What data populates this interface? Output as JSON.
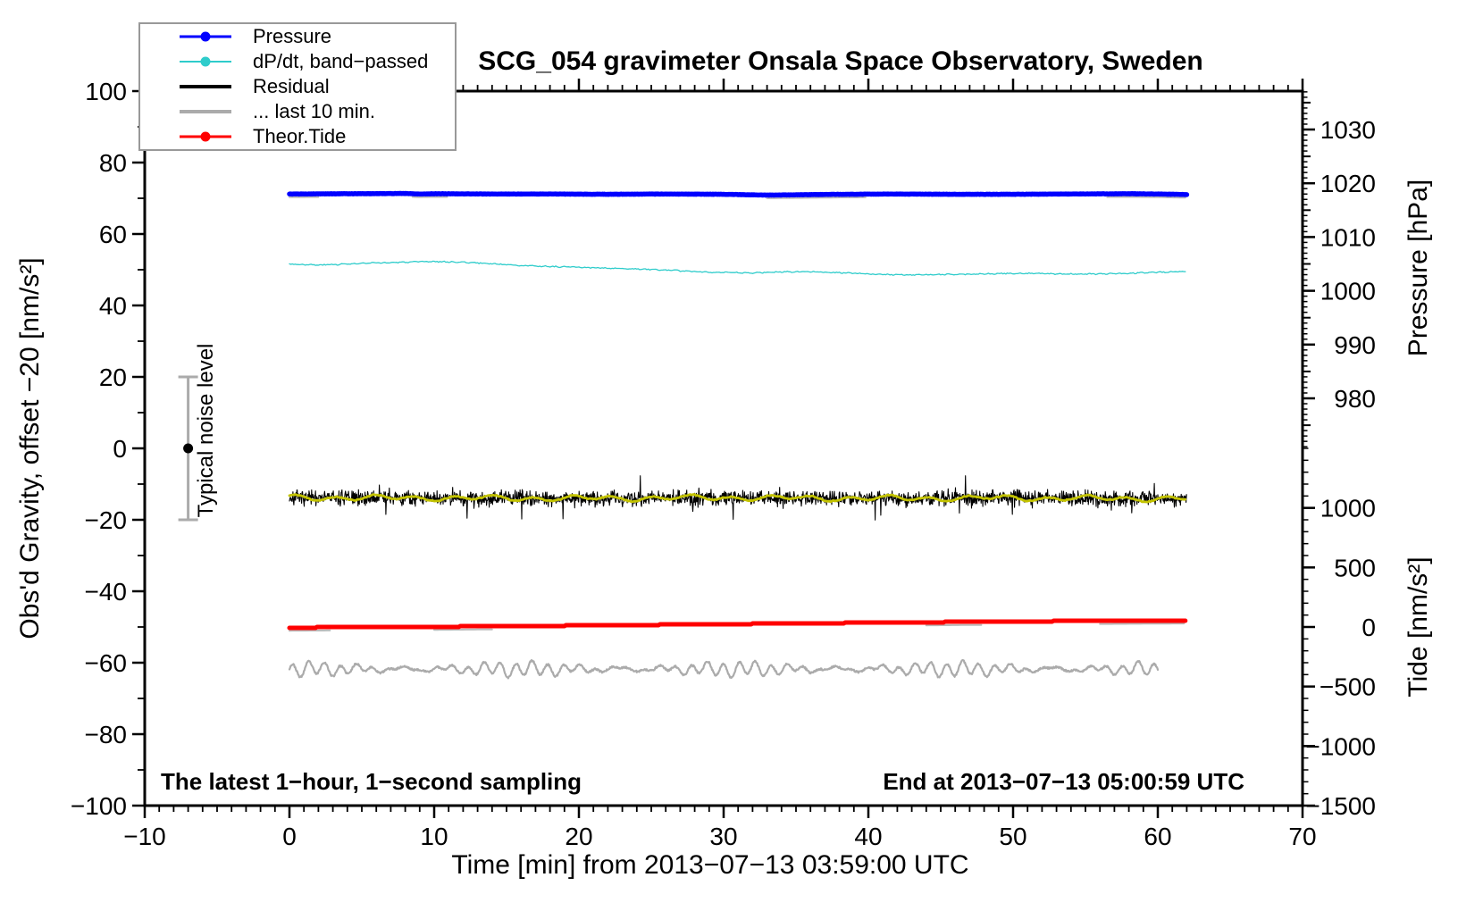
{
  "title": "SCG_054 gravimeter Onsala Space Observatory, Sweden",
  "annotations": {
    "sampling": "The latest 1−hour, 1−second sampling",
    "end": "End at 2013−07−13 05:00:59 UTC",
    "noise": "Typical noise level"
  },
  "axes": {
    "x": {
      "label": "Time [min] from 2013−07−13 03:59:00 UTC",
      "range": [
        -10,
        70
      ],
      "major_step": 10,
      "minor_step": 1,
      "tick_labels": [
        "−10",
        "0",
        "10",
        "20",
        "30",
        "40",
        "50",
        "60",
        "70"
      ],
      "tick_values": [
        -10,
        0,
        10,
        20,
        30,
        40,
        50,
        60,
        70
      ]
    },
    "gravity": {
      "label": "Obs'd Gravity, offset −20 [nm/s²]",
      "range": [
        -100,
        100
      ],
      "major_step": 20,
      "minor_step": 10,
      "tick_labels": [
        "100",
        "80",
        "60",
        "40",
        "20",
        "0",
        "−20",
        "−40",
        "−60",
        "−80",
        "−100"
      ],
      "tick_values": [
        100,
        80,
        60,
        40,
        20,
        0,
        -20,
        -40,
        -60,
        -80,
        -100
      ]
    },
    "pressure": {
      "label": "Pressure [hPa]",
      "tick_labels": [
        "1030",
        "1020",
        "1010",
        "1000",
        "990",
        "980"
      ],
      "tick_values": [
        1030,
        1020,
        1010,
        1000,
        990,
        980
      ],
      "medium_step": 5,
      "minor_step": 1,
      "minor_range": [
        971,
        1037
      ]
    },
    "tide": {
      "label": "Tide [nm/s²]",
      "tick_labels": [
        "1000",
        "500",
        "0",
        "−500",
        "−1000",
        "−1500"
      ],
      "tick_values": [
        1000,
        500,
        0,
        -500,
        -1000,
        -1500
      ],
      "minor_step": 100,
      "minor_range": [
        -1500,
        1500
      ]
    }
  },
  "legend": {
    "items": [
      {
        "id": "pressure",
        "label": "Pressure",
        "color": "#0000FF",
        "marker": true,
        "weight": 3
      },
      {
        "id": "dpdt-band-passed",
        "label": "dP/dt, band−passed",
        "color": "#2ECCCB",
        "marker": true,
        "weight": 2
      },
      {
        "id": "residual",
        "label": "Residual",
        "color": "#000000",
        "marker": false,
        "weight": 4
      },
      {
        "id": "last-10-min",
        "label": "... last 10 min.",
        "color": "#ABABAB",
        "marker": false,
        "weight": 4
      },
      {
        "id": "theor-tide",
        "label": "Theor.Tide",
        "color": "#FF0000",
        "marker": true,
        "weight": 3
      }
    ]
  },
  "chart_data": {
    "type": "line",
    "title": "SCG_054 gravimeter Onsala Space Observatory, Sweden",
    "xlabel": "Time [min] from 2013−07−13 03:59:00 UTC",
    "x_range": [
      -10,
      70
    ],
    "data_t_range": [
      0,
      62
    ],
    "left_axis_range": [
      -100,
      100
    ],
    "series": [
      {
        "name": "Pressure",
        "axis": "pressure",
        "color": "#0000FF",
        "width": 5.5,
        "points": [
          [
            0,
            1018.0
          ],
          [
            4,
            1018.05
          ],
          [
            8,
            1018.1
          ],
          [
            9,
            1018.0
          ],
          [
            10,
            1018.05
          ],
          [
            14,
            1018.0
          ],
          [
            18,
            1018.0
          ],
          [
            22,
            1017.95
          ],
          [
            26,
            1018.0
          ],
          [
            30,
            1017.95
          ],
          [
            33,
            1017.8
          ],
          [
            35,
            1017.85
          ],
          [
            38,
            1017.95
          ],
          [
            42,
            1018.0
          ],
          [
            46,
            1017.95
          ],
          [
            50,
            1017.95
          ],
          [
            54,
            1018.0
          ],
          [
            58,
            1018.05
          ],
          [
            60,
            1018.0
          ],
          [
            62,
            1017.9
          ]
        ],
        "shadow_segments": [
          [
            0,
            2
          ],
          [
            8.5,
            11
          ],
          [
            33,
            40
          ],
          [
            56.5,
            62
          ]
        ]
      },
      {
        "name": "dP/dt, band−passed",
        "axis": "gravity",
        "color": "#2ECCCB",
        "width": 1.3,
        "points": [
          [
            0,
            51.6
          ],
          [
            2,
            51.3
          ],
          [
            4,
            51.6
          ],
          [
            6,
            51.9
          ],
          [
            8,
            52.1
          ],
          [
            10,
            52.3
          ],
          [
            12,
            52.1
          ],
          [
            14,
            51.7
          ],
          [
            16,
            51.2
          ],
          [
            18,
            50.9
          ],
          [
            20,
            50.7
          ],
          [
            22,
            50.4
          ],
          [
            24,
            50.2
          ],
          [
            26,
            49.9
          ],
          [
            28,
            49.5
          ],
          [
            30,
            49.2
          ],
          [
            32,
            49.1
          ],
          [
            34,
            49.4
          ],
          [
            36,
            49.5
          ],
          [
            38,
            49.2
          ],
          [
            40,
            48.8
          ],
          [
            42,
            48.6
          ],
          [
            44,
            48.6
          ],
          [
            46,
            48.7
          ],
          [
            48,
            48.8
          ],
          [
            50,
            49.0
          ],
          [
            52,
            48.9
          ],
          [
            54,
            48.8
          ],
          [
            56,
            48.8
          ],
          [
            58,
            49.0
          ],
          [
            60,
            49.3
          ],
          [
            62,
            49.5
          ]
        ],
        "jitter": 0.14
      },
      {
        "name": "Residual",
        "axis": "gravity",
        "color": "#000000",
        "width": 1.1,
        "points": [
          [
            0,
            -13.8
          ],
          [
            10,
            -13.9
          ],
          [
            20,
            -14.0
          ],
          [
            30,
            -13.8
          ],
          [
            40,
            -14.0
          ],
          [
            50,
            -13.9
          ],
          [
            62,
            -14.1
          ]
        ],
        "noise": {
          "sigma": 2.1,
          "spike_prob": 0.012,
          "spike_extra": 3.5,
          "clamp": 7.5,
          "step": 0.03,
          "seed": 7
        }
      },
      {
        "name": "Residual smoothed (10 s)",
        "axis": "gravity",
        "color": "#C3C300",
        "width": 2.8,
        "points": [
          [
            0,
            -13.8
          ],
          [
            10,
            -13.9
          ],
          [
            20,
            -14.0
          ],
          [
            30,
            -13.8
          ],
          [
            40,
            -14.0
          ],
          [
            50,
            -13.9
          ],
          [
            62,
            -14.1
          ]
        ],
        "wiggle": {
          "a1": 0.55,
          "f1": 2.3,
          "p1": 0.5,
          "a2": 0.35,
          "f2": 0.9,
          "p2": 2.0,
          "jitter": 0.15,
          "step": 0.1,
          "seed": 11
        }
      },
      {
        "name": "... last 10 min.",
        "axis": "gravity",
        "color": "#ABABAB",
        "width": 2.2,
        "t_range": [
          0,
          60
        ],
        "osc": {
          "mean": -61.8,
          "amp_base": 1.05,
          "amp_mod": 0.85,
          "amp_freq": 0.42,
          "amp_phase": 1.2,
          "freq": 5.7,
          "phase": 0.3,
          "a2": 0.55,
          "f2": 2.1,
          "p2": 4.0,
          "jitter": 0.25,
          "step": 0.04,
          "seed": 23
        }
      },
      {
        "name": "Theor.Tide",
        "axis": "tide",
        "color": "#FF0000",
        "width": 5,
        "points": [
          [
            0,
            -5
          ],
          [
            6,
            -1
          ],
          [
            12,
            4
          ],
          [
            18,
            10
          ],
          [
            24,
            17
          ],
          [
            30,
            24
          ],
          [
            36,
            31
          ],
          [
            42,
            38
          ],
          [
            48,
            44
          ],
          [
            54,
            50
          ],
          [
            58,
            53
          ],
          [
            62,
            56
          ]
        ],
        "staircase": true,
        "shadow_segments": [
          [
            0,
            3
          ],
          [
            10,
            14
          ],
          [
            44,
            48
          ],
          [
            56,
            62
          ]
        ]
      }
    ],
    "noise_bar": {
      "t": -7,
      "center": 0,
      "half_height": 20,
      "color": "#ABABAB",
      "dot_color": "#000000"
    },
    "legend_position": "top-left",
    "grid": false
  },
  "colors": {
    "frame": "#000000",
    "shadow": "#BBBBBB",
    "legend_border": "#999999"
  }
}
